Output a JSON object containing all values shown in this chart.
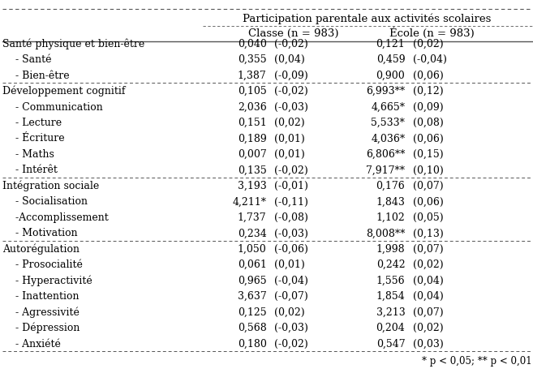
{
  "title_top": "Participation parentale aux activités scolaires",
  "col1_header": "Classe (n = 983)",
  "col2_header": "École (n = 983)",
  "rows": [
    {
      "label": "Santé physique et bien-être",
      "c1": "0,040",
      "c1b": "(-0,02)",
      "c2": "0,121",
      "c2b": "(0,02)",
      "bold": false,
      "indent": false
    },
    {
      "label": "    - Santé",
      "c1": "0,355",
      "c1b": "(0,04)",
      "c2": "0,459",
      "c2b": "(-0,04)",
      "bold": false,
      "indent": true
    },
    {
      "label": "    - Bien-être",
      "c1": "1,387",
      "c1b": "(-0,09)",
      "c2": "0,900",
      "c2b": "(0,06)",
      "bold": false,
      "indent": true,
      "section_break_after": true
    },
    {
      "label": "Développement cognitif",
      "c1": "0,105",
      "c1b": "(-0,02)",
      "c2": "6,993**",
      "c2b": "(0,12)",
      "bold": false,
      "indent": false
    },
    {
      "label": "    - Communication",
      "c1": "2,036",
      "c1b": "(-0,03)",
      "c2": "4,665*",
      "c2b": "(0,09)",
      "bold": false,
      "indent": true
    },
    {
      "label": "    - Lecture",
      "c1": "0,151",
      "c1b": "(0,02)",
      "c2": "5,533*",
      "c2b": "(0,08)",
      "bold": false,
      "indent": true
    },
    {
      "label": "    - Écriture",
      "c1": "0,189",
      "c1b": "(0,01)",
      "c2": "4,036*",
      "c2b": "(0,06)",
      "bold": false,
      "indent": true
    },
    {
      "label": "    - Maths",
      "c1": "0,007",
      "c1b": "(0,01)",
      "c2": "6,806**",
      "c2b": "(0,15)",
      "bold": false,
      "indent": true
    },
    {
      "label": "    - Intérêt",
      "c1": "0,135",
      "c1b": "(-0,02)",
      "c2": "7,917**",
      "c2b": "(0,10)",
      "bold": false,
      "indent": true,
      "section_break_after": true
    },
    {
      "label": "Intégration sociale",
      "c1": "3,193",
      "c1b": "(-0,01)",
      "c2": "0,176",
      "c2b": "(0,07)",
      "bold": false,
      "indent": false
    },
    {
      "label": "    - Socialisation",
      "c1": "4,211*",
      "c1b": "(-0,11)",
      "c2": "1,843",
      "c2b": "(0,06)",
      "bold": false,
      "indent": true
    },
    {
      "label": "    -Accomplissement",
      "c1": "1,737",
      "c1b": "(-0,08)",
      "c2": "1,102",
      "c2b": "(0,05)",
      "bold": false,
      "indent": true
    },
    {
      "label": "    - Motivation",
      "c1": "0,234",
      "c1b": "(-0,03)",
      "c2": "8,008**",
      "c2b": "(0,13)",
      "bold": false,
      "indent": true,
      "section_break_after": true
    },
    {
      "label": "Autorégulation",
      "c1": "1,050",
      "c1b": "(-0,06)",
      "c2": "1,998",
      "c2b": "(0,07)",
      "bold": false,
      "indent": false
    },
    {
      "label": "    - Prosocialité",
      "c1": "0,061",
      "c1b": "(0,01)",
      "c2": "0,242",
      "c2b": "(0,02)",
      "bold": false,
      "indent": true
    },
    {
      "label": "    - Hyperactivité",
      "c1": "0,965",
      "c1b": "(-0,04)",
      "c2": "1,556",
      "c2b": "(0,04)",
      "bold": false,
      "indent": true
    },
    {
      "label": "    - Inattention",
      "c1": "3,637",
      "c1b": "(-0,07)",
      "c2": "1,854",
      "c2b": "(0,04)",
      "bold": false,
      "indent": true
    },
    {
      "label": "    - Agressivité",
      "c1": "0,125",
      "c1b": "(0,02)",
      "c2": "3,213",
      "c2b": "(0,07)",
      "bold": false,
      "indent": true
    },
    {
      "label": "    - Dépression",
      "c1": "0,568",
      "c1b": "(-0,03)",
      "c2": "0,204",
      "c2b": "(0,02)",
      "bold": false,
      "indent": true
    },
    {
      "label": "    - Anxiété",
      "c1": "0,180",
      "c1b": "(-0,02)",
      "c2": "0,547",
      "c2b": "(0,03)",
      "bold": false,
      "indent": true
    }
  ],
  "footnote": "* p < 0,05; ** p < 0,01",
  "bg_color": "#ffffff",
  "text_color": "#000000",
  "line_color": "#555555",
  "font_size": 9.0,
  "header_font_size": 9.5
}
